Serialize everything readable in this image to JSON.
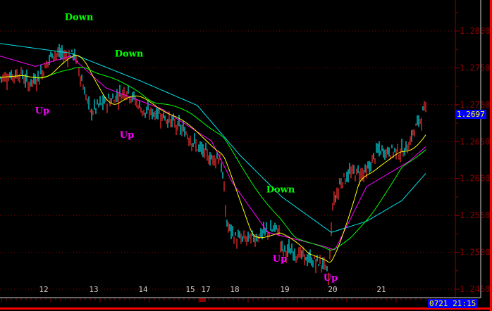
{
  "chart_data": {
    "type": "line",
    "ylim": [
      1.245,
      1.28
    ],
    "y_ticks": [
      "1.2800",
      "1.2750",
      "1.2700",
      "1.2650",
      "1.2600",
      "1.2550",
      "1.2500",
      "1.2450"
    ],
    "x_ticks": [
      {
        "label": "12",
        "bar": 12.4
      },
      {
        "label": "13",
        "bar": 26.6
      },
      {
        "label": "14",
        "bar": 40.6
      },
      {
        "label": "15",
        "bar": 54.6
      },
      {
        "label": "17",
        "bar": 57.8
      },
      {
        "label": "18",
        "bar": 66.6
      },
      {
        "label": "19",
        "bar": 80.8
      },
      {
        "label": "20",
        "bar": 94.4
      },
      {
        "label": "21",
        "bar": 108.2
      }
    ],
    "xlim": [
      0,
      139.6
    ],
    "grid": true,
    "price": {
      "bar": [
        0,
        6,
        8,
        11,
        15,
        19,
        21,
        23,
        25.6,
        28,
        32,
        36,
        38,
        41,
        45,
        49,
        53,
        56,
        60,
        62.4,
        63.6,
        64.4,
        67,
        71,
        75,
        79,
        80,
        84,
        88,
        92,
        93.2,
        94.4,
        97,
        100,
        104,
        107,
        111,
        115,
        118,
        121
      ],
      "value": [
        1.2737,
        1.2742,
        1.2728,
        1.2737,
        1.277,
        1.2766,
        1.277,
        1.2737,
        1.2689,
        1.2699,
        1.2708,
        1.272,
        1.2708,
        1.2689,
        1.2689,
        1.2675,
        1.2661,
        1.2642,
        1.2627,
        1.263,
        1.2584,
        1.2537,
        1.2518,
        1.2518,
        1.2527,
        1.2532,
        1.2503,
        1.2499,
        1.2489,
        1.2484,
        1.2465,
        1.2565,
        1.2599,
        1.2608,
        1.2608,
        1.2637,
        1.2637,
        1.2637,
        1.267,
        1.2697
      ]
    },
    "series": [
      {
        "color": "#00e5ee",
        "bar": [
          0,
          20,
          40,
          56,
          68,
          80,
          94,
          104,
          114,
          121
        ],
        "value": [
          1.2783,
          1.277,
          1.2732,
          1.2699,
          1.2632,
          1.2575,
          1.2527,
          1.2542,
          1.257,
          1.2608
        ]
      },
      {
        "color": "#ff00ff",
        "bar": [
          0,
          10,
          20,
          30,
          46,
          60,
          66,
          76,
          92,
          95,
          104,
          116,
          121
        ],
        "value": [
          1.2766,
          1.2752,
          1.2766,
          1.2723,
          1.2694,
          1.2651,
          1.2594,
          1.2527,
          1.2508,
          1.2503,
          1.2589,
          1.2623,
          1.2644
        ]
      },
      {
        "color": "#00ff00",
        "ma": 20
      },
      {
        "color": "#ffff00",
        "ma": 8
      }
    ],
    "candle_colors": {
      "up": "#ff3030",
      "down": "#00e5ee"
    },
    "annotations": [
      {
        "text": "Down",
        "color": "#00ff00",
        "bar": 22.4,
        "price": 1.2815
      },
      {
        "text": "Down",
        "color": "#00ff00",
        "bar": 36.6,
        "price": 1.2765
      },
      {
        "text": "Down",
        "color": "#00ff00",
        "bar": 79.6,
        "price": 1.2581
      },
      {
        "text": "Up",
        "color": "#ff00ff",
        "bar": 12,
        "price": 1.2688
      },
      {
        "text": "Up",
        "color": "#ff00ff",
        "bar": 36,
        "price": 1.2655
      },
      {
        "text": "Up",
        "color": "#ff00ff",
        "bar": 79.4,
        "price": 1.2487
      },
      {
        "text": "Up",
        "color": "#ff00ff",
        "bar": 93.8,
        "price": 1.245
      }
    ]
  },
  "current_price": "1.2697",
  "cursor_time": "0721 21:15"
}
